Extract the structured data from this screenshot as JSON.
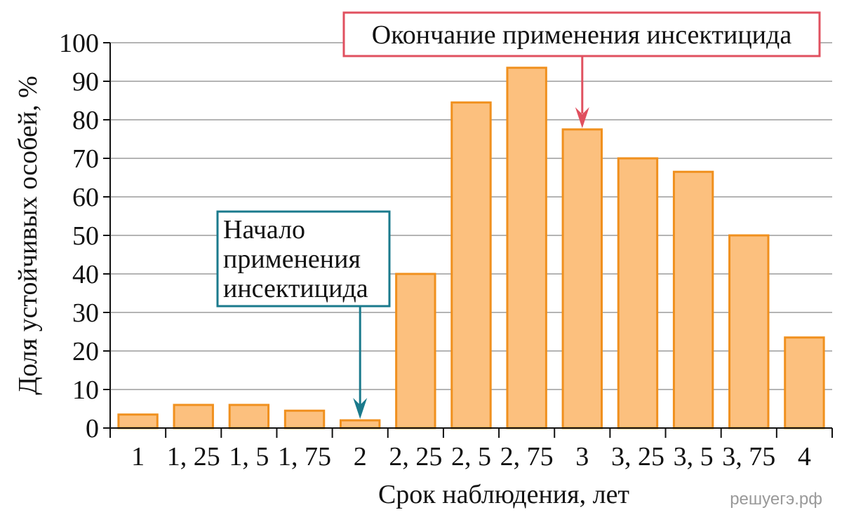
{
  "chart_data": {
    "type": "bar",
    "categories": [
      "1",
      "1, 25",
      "1, 5",
      "1, 75",
      "2",
      "2, 25",
      "2, 5",
      "2, 75",
      "3",
      "3, 25",
      "3, 5",
      "3, 75",
      "4"
    ],
    "values": [
      3.5,
      6,
      6,
      4.5,
      2,
      40,
      84.5,
      93.5,
      77.5,
      70,
      66.5,
      50,
      23.5
    ],
    "title": "",
    "xlabel": "Срок наблюдения, лет",
    "ylabel": "Доля устойчивых особей, %",
    "ylim": [
      0,
      100
    ],
    "yticks": [
      "0",
      "10",
      "20",
      "30",
      "40",
      "50",
      "60",
      "70",
      "80",
      "90",
      "100"
    ],
    "grid": true,
    "annotations": [
      {
        "text_lines": [
          "Начало",
          "применения",
          "инсектицида"
        ],
        "category": "2",
        "color": "#1a7a8c"
      },
      {
        "text_lines": [
          "Окончание применения инсектицида"
        ],
        "category": "3",
        "color": "#e0505f"
      }
    ],
    "colors": {
      "bar_fill": "#fcc07e",
      "bar_stroke": "#f0901e",
      "grid": "#b4b4b4",
      "axis": "#111111"
    }
  },
  "watermark": "решуегэ.рф"
}
